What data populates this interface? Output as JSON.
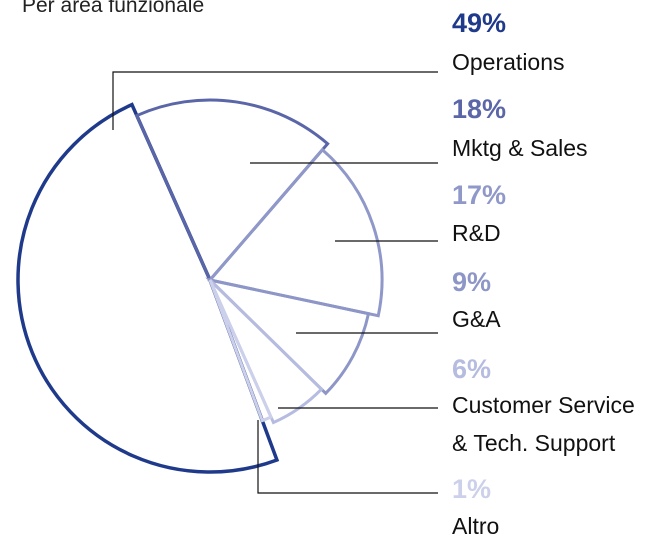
{
  "chart_data": {
    "type": "pie",
    "title": "Per area funzionale",
    "categories": [
      "Operations",
      "Mktg & Sales",
      "R&D",
      "G&A",
      "Customer Service\n& Tech. Support",
      "Altro"
    ],
    "values": [
      49,
      18,
      17,
      9,
      6,
      1
    ],
    "value_labels": [
      "49%",
      "18%",
      "17%",
      "9%",
      "6%",
      "1%"
    ],
    "colors": [
      "#1f3a8a",
      "#5a66a8",
      "#8f98c9",
      "#8d96c6",
      "#b6bce0",
      "#ccd0ea"
    ]
  }
}
